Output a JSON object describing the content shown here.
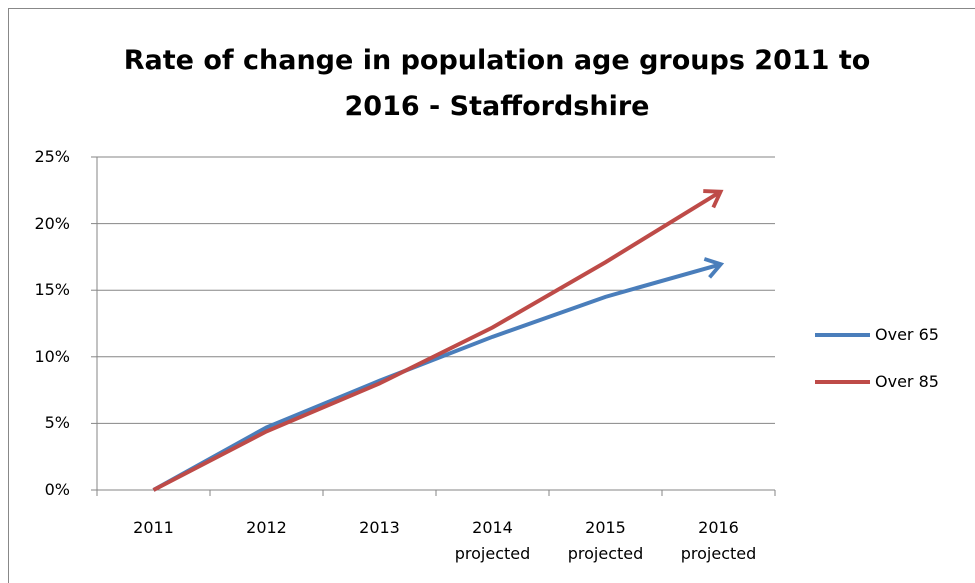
{
  "chart_data": {
    "type": "line",
    "title": "Rate of change in population age groups 2011 to 2016 - Staffordshire",
    "categories": [
      "2011",
      "2012",
      "2013",
      "2014 projected",
      "2015 projected",
      "2016 projected"
    ],
    "series": [
      {
        "name": "Over 65",
        "color": "#4a7ebb",
        "values": [
          0,
          4.7,
          8.2,
          11.5,
          14.5,
          16.9
        ]
      },
      {
        "name": "Over 85",
        "color": "#be4b48",
        "values": [
          0,
          4.4,
          8.0,
          12.2,
          17.1,
          22.3
        ]
      }
    ],
    "ylim": [
      0,
      25
    ],
    "yticks": [
      {
        "value": 0,
        "label": "0%"
      },
      {
        "value": 5,
        "label": "5%"
      },
      {
        "value": 10,
        "label": "10%"
      },
      {
        "value": 15,
        "label": "15%"
      },
      {
        "value": 20,
        "label": "20%"
      },
      {
        "value": 25,
        "label": "25%"
      }
    ],
    "grid": true,
    "legend": "right"
  }
}
